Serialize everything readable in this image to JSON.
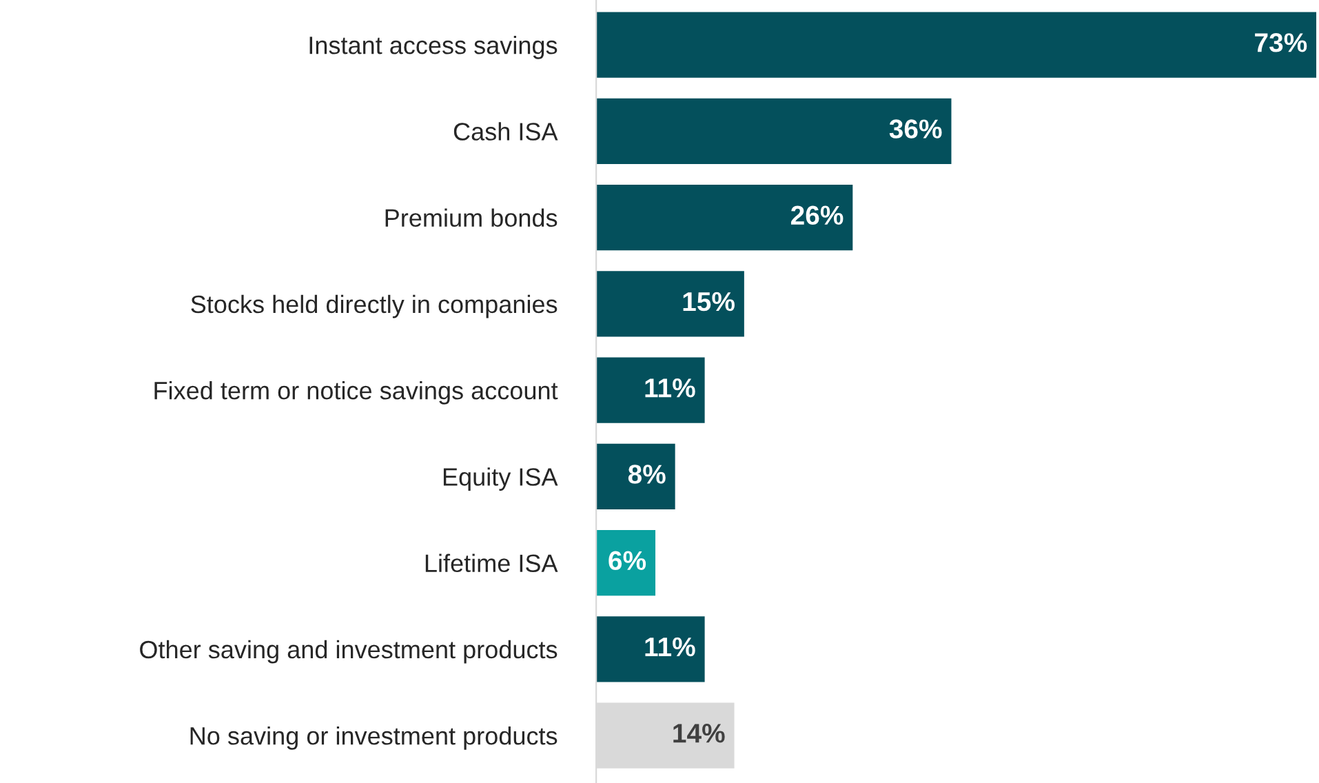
{
  "chart_data": {
    "type": "bar",
    "orientation": "horizontal",
    "categories": [
      "Instant access savings",
      "Cash ISA",
      "Premium bonds",
      "Stocks held directly in companies",
      "Fixed term or notice savings account",
      "Equity ISA",
      "Lifetime ISA",
      "Other saving and investment products",
      "No saving or investment products"
    ],
    "values": [
      73,
      36,
      26,
      15,
      11,
      8,
      6,
      11,
      14
    ],
    "value_labels": [
      "73%",
      "36%",
      "26%",
      "15%",
      "11%",
      "8%",
      "6%",
      "11%",
      "14%"
    ],
    "colors": [
      "#04505c",
      "#04505c",
      "#04505c",
      "#04505c",
      "#04505c",
      "#04505c",
      "#0aa1a0",
      "#04505c",
      "#d9d9d9"
    ],
    "xlim": [
      0,
      73
    ],
    "tick_labels": "y",
    "grid": false,
    "legend": false
  }
}
